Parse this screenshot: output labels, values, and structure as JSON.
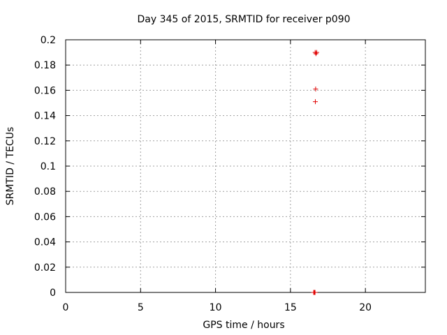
{
  "chart_data": {
    "type": "scatter",
    "title": "Day 345 of 2015, SRMTID for receiver p090",
    "xlabel": "GPS time / hours",
    "ylabel": "SRMTID / TECUs",
    "xlim": [
      0,
      24
    ],
    "ylim": [
      0,
      0.2
    ],
    "xticks": [
      0,
      5,
      10,
      15,
      20
    ],
    "xtick_labels": [
      "0",
      "5",
      "10",
      "15",
      "20"
    ],
    "yticks": [
      0,
      0.02,
      0.04,
      0.06,
      0.08,
      0.1,
      0.12,
      0.14,
      0.16,
      0.18,
      0.2
    ],
    "ytick_labels": [
      "0",
      "0.02",
      "0.04",
      "0.06",
      "0.08",
      "0.1",
      "0.12",
      "0.14",
      "0.16",
      "0.18",
      "0.2"
    ],
    "grid": true,
    "marker_color": "#e00000",
    "series": [
      {
        "name": "SRMTID",
        "points": [
          {
            "x": 16.65,
            "y": 0.19
          },
          {
            "x": 16.7,
            "y": 0.189
          },
          {
            "x": 16.75,
            "y": 0.19
          },
          {
            "x": 16.68,
            "y": 0.161
          },
          {
            "x": 16.66,
            "y": 0.151
          },
          {
            "x": 16.55,
            "y": 0.0
          },
          {
            "x": 16.58,
            "y": 0.0
          },
          {
            "x": 16.61,
            "y": 0.0
          },
          {
            "x": 16.64,
            "y": 0.0
          }
        ]
      }
    ]
  }
}
